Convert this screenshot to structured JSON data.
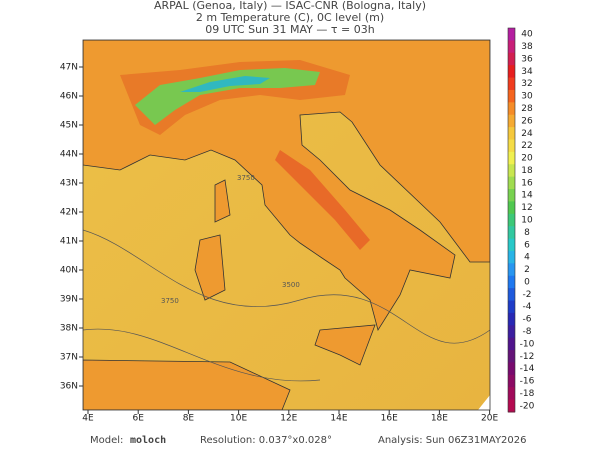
{
  "header": {
    "line1": "ARPAL (Genoa, Italy)  —  ISAC-CNR (Bologna, Italy)",
    "line2": "2 m Temperature (C), 0C level (m)",
    "line3": "09 UTC Sun 31 MAY  —  τ = 03h"
  },
  "map": {
    "lon_labels": [
      "4E",
      "6E",
      "8E",
      "10E",
      "12E",
      "14E",
      "16E",
      "18E",
      "20E"
    ],
    "lat_labels": [
      "47N",
      "46N",
      "45N",
      "44N",
      "43N",
      "42N",
      "41N",
      "40N",
      "39N",
      "38N",
      "37N",
      "36N"
    ],
    "contour_labels": [
      "3750",
      "3750",
      "3500"
    ]
  },
  "colorbar": {
    "ticks": [
      40,
      38,
      36,
      34,
      32,
      30,
      28,
      26,
      24,
      22,
      20,
      18,
      16,
      14,
      12,
      10,
      8,
      6,
      4,
      2,
      0,
      -2,
      -4,
      -6,
      -8,
      -10,
      -12,
      -14,
      -16,
      -18,
      -20
    ],
    "colors": [
      "#b41ea0",
      "#c81e78",
      "#d21e50",
      "#e61e1e",
      "#f03c1e",
      "#f5641e",
      "#f58c28",
      "#f5aa32",
      "#f5c83c",
      "#f5dc46",
      "#f0f050",
      "#c8e650",
      "#a0dc50",
      "#78d250",
      "#50c850",
      "#3cc878",
      "#32c8a0",
      "#28c8c8",
      "#28b4e6",
      "#2896f0",
      "#1e78f0",
      "#1e5adc",
      "#1e3cc8",
      "#2828b4",
      "#3c1ea0",
      "#50148c",
      "#641478",
      "#780a6e",
      "#8c0a64",
      "#a00a5a",
      "#b40a50"
    ]
  },
  "footer": {
    "model_label": "Model:",
    "model": "moloch",
    "resolution": "Resolution: 0.037°x0.028°",
    "analysis": "Analysis: Sun 06Z31MAY2026"
  }
}
